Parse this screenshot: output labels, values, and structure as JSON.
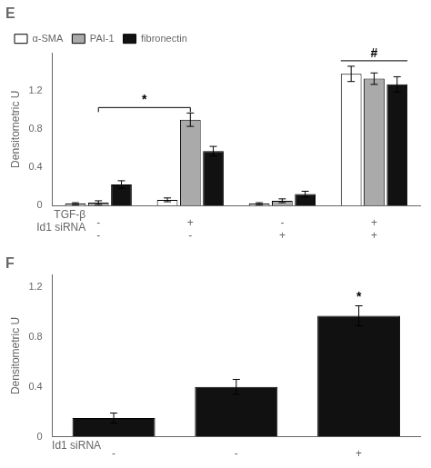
{
  "chart_data": [
    {
      "type": "bar",
      "title": "E",
      "ylabel": "Densitometric U",
      "xlabel": [
        "TGF-β",
        "Id1 siRNA"
      ],
      "categories": [
        [
          "-",
          "-"
        ],
        [
          "+",
          "-"
        ],
        [
          "-",
          "+"
        ],
        [
          "+",
          "+"
        ]
      ],
      "series": [
        {
          "name": "α-SMA",
          "color": "white",
          "values": [
            0.02,
            0.06,
            0.02,
            1.38
          ],
          "errors": [
            0.01,
            0.02,
            0.01,
            0.08
          ]
        },
        {
          "name": "PAI-1",
          "color": "#aaaaaa",
          "values": [
            0.03,
            0.9,
            0.05,
            1.33
          ],
          "errors": [
            0.02,
            0.07,
            0.02,
            0.06
          ]
        },
        {
          "name": "fibronectin",
          "color": "#111111",
          "values": [
            0.22,
            0.57,
            0.12,
            1.27
          ],
          "errors": [
            0.04,
            0.05,
            0.03,
            0.08
          ]
        }
      ],
      "ylim": [
        0,
        1.6
      ],
      "yticks": [
        0,
        0.4,
        0.8,
        1.2
      ],
      "grid": false,
      "legend": "upper left",
      "annotations": [
        {
          "text": "*",
          "categories": [
            0,
            1
          ]
        },
        {
          "text": "#",
          "categories": [
            3
          ]
        }
      ]
    },
    {
      "type": "bar",
      "title": "F",
      "ylabel": "Densitometric U",
      "xlabel": [
        "Id1 siRNA"
      ],
      "categories": [
        "-",
        "-",
        "+"
      ],
      "color": "#111111",
      "values": [
        0.15,
        0.4,
        0.97
      ],
      "errors": [
        0.04,
        0.06,
        0.08
      ],
      "ylim": [
        0,
        1.3
      ],
      "yticks": [
        0,
        0.4,
        0.8,
        1.2
      ],
      "grid": false,
      "annotations": [
        {
          "text": "*",
          "categories": [
            2
          ]
        }
      ]
    }
  ]
}
